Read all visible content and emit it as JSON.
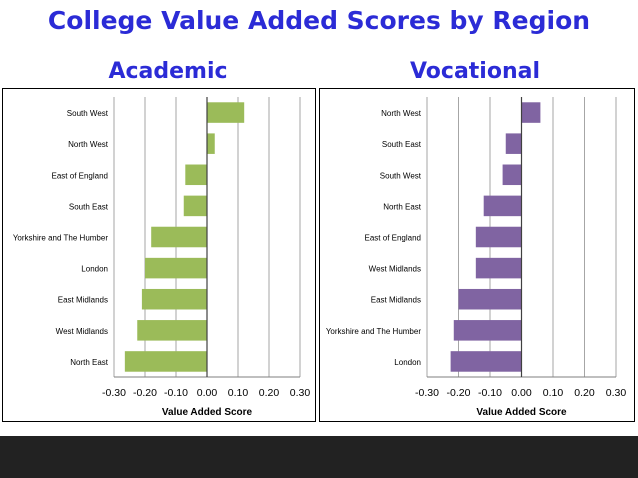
{
  "title": "College Value Added Scores by Region",
  "colors": {
    "title": "#2b2bd6",
    "academic_bar": "#9bbb59",
    "vocational_bar": "#8064a2",
    "footer": "#222222"
  },
  "chart_data": [
    {
      "type": "bar",
      "orientation": "horizontal",
      "subtitle": "Academic",
      "xlabel": "Value Added Score",
      "xlim": [
        -0.3,
        0.3
      ],
      "xticks": [
        "-0.30",
        "-0.20",
        "-0.10",
        "0.00",
        "0.10",
        "0.20",
        "0.30"
      ],
      "grid": true,
      "categories": [
        "South West",
        "North West",
        "East of England",
        "South East",
        "Yorkshire and The Humber",
        "London",
        "East Midlands",
        "West Midlands",
        "North East"
      ],
      "values": [
        0.12,
        0.025,
        -0.07,
        -0.075,
        -0.18,
        -0.2,
        -0.21,
        -0.225,
        -0.265
      ]
    },
    {
      "type": "bar",
      "orientation": "horizontal",
      "subtitle": "Vocational",
      "xlabel": "Value Added Score",
      "xlim": [
        -0.3,
        0.3
      ],
      "xticks": [
        "-0.30",
        "-0.20",
        "-0.10",
        "0.00",
        "0.10",
        "0.20",
        "0.30"
      ],
      "grid": true,
      "categories": [
        "North West",
        "South East",
        "South West",
        "North East",
        "East of England",
        "West Midlands",
        "East Midlands",
        "Yorkshire and The Humber",
        "London"
      ],
      "values": [
        0.06,
        -0.05,
        -0.06,
        -0.12,
        -0.145,
        -0.145,
        -0.2,
        -0.215,
        -0.225
      ]
    }
  ]
}
